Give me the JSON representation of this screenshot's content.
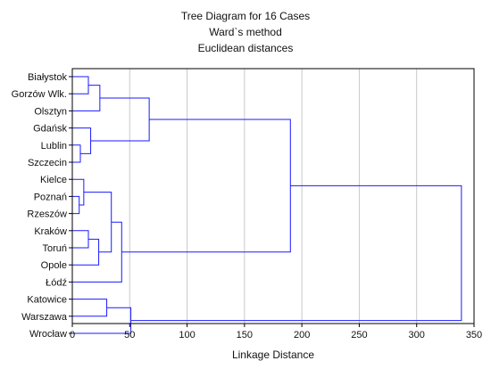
{
  "chart_data": {
    "type": "dendrogram",
    "title": "Tree Diagram for 16 Cases",
    "subtitle": [
      "Ward`s method",
      "Euclidean distances"
    ],
    "xlabel": "Linkage Distance",
    "ylabel": "",
    "xlim": [
      0,
      350
    ],
    "xticks": [
      "0",
      "50",
      "100",
      "150",
      "200",
      "250",
      "300",
      "350"
    ],
    "grid": "vertical",
    "leaves": [
      "Białystok",
      "Gorzów Wlk.",
      "Olsztyn",
      "Gdańsk",
      "Lublin",
      "Szczecin",
      "Kielce",
      "Poznań",
      "Rzeszów",
      "Kraków",
      "Toruń",
      "Opole",
      "Łódź",
      "Katowice",
      "Warszawa",
      "Wrocław"
    ],
    "merges": [
      {
        "a": "Białystok",
        "b": "Gorzów Wlk.",
        "height": 14
      },
      {
        "a": "Lublin",
        "b": "Szczecin",
        "height": 7
      },
      {
        "a": "Poznań",
        "b": "Rzeszów",
        "height": 6
      },
      {
        "a": "Kraków",
        "b": "Toruń",
        "height": 14
      },
      {
        "a": "Katowice",
        "b": "Warszawa",
        "height": 30
      },
      {
        "a": "C1",
        "b": "Olsztyn",
        "height": 24
      },
      {
        "a": "Gdańsk",
        "b": "C2",
        "height": 16
      },
      {
        "a": "Kielce",
        "b": "C3",
        "height": 10
      },
      {
        "a": "C4",
        "b": "Opole",
        "height": 23
      },
      {
        "a": "C6",
        "b": "C7",
        "height": 67
      },
      {
        "a": "C8",
        "b": "C9",
        "height": 34
      },
      {
        "a": "C11",
        "b": "Łódź",
        "height": 43
      },
      {
        "a": "C5",
        "b": "Wrocław",
        "height": 51
      },
      {
        "a": "C10",
        "b": "C12",
        "height": 190
      },
      {
        "a": "C14",
        "b": "C13",
        "height": 339
      }
    ],
    "line_color": "#1a1aff",
    "grid_color": "#c8c8c8"
  }
}
